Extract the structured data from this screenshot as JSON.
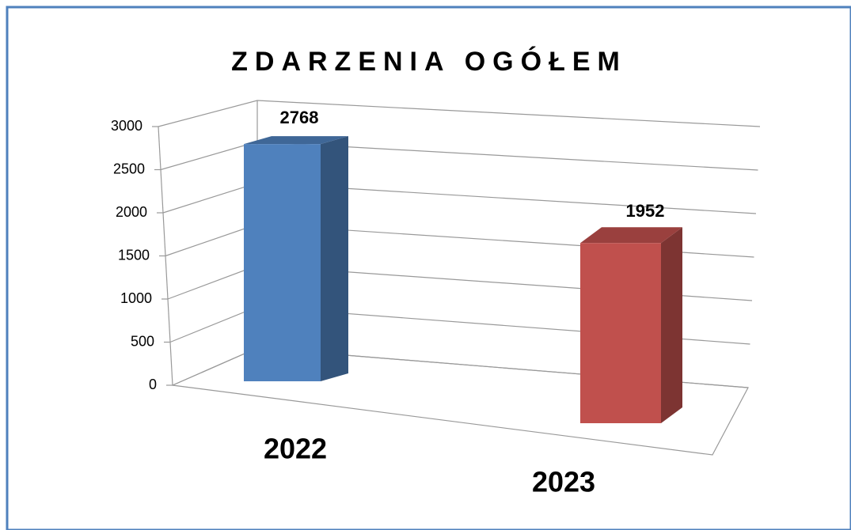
{
  "chart_data": {
    "type": "bar3d",
    "title": "ZDARZENIA OGÓŁEM",
    "categories": [
      "2022",
      "2023"
    ],
    "values": [
      2768,
      1952
    ],
    "colors": [
      "#4f81bd",
      "#c0504d"
    ],
    "ylim": [
      0,
      3000
    ],
    "yticks": [
      0,
      500,
      1000,
      1500,
      2000,
      2500,
      3000
    ],
    "grid": true
  }
}
